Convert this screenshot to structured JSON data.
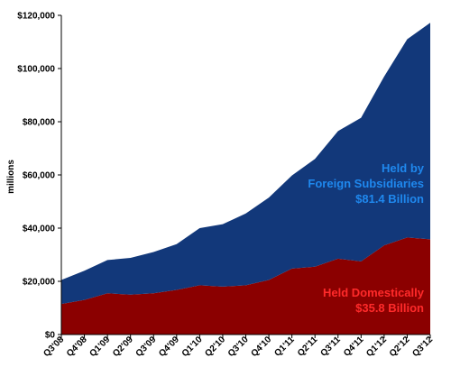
{
  "chart_data": {
    "type": "area",
    "stacked": true,
    "categories": [
      "Q3'08",
      "Q4'08",
      "Q1'09",
      "Q2'09",
      "Q3'09",
      "Q4'09",
      "Q1'10",
      "Q2'10",
      "Q3'10",
      "Q4'10",
      "Q1'11",
      "Q2'11",
      "Q3'11",
      "Q4'11",
      "Q1'12",
      "Q2'12",
      "Q3'12"
    ],
    "ylabel": "millions",
    "ylim": [
      0,
      120000
    ],
    "yticks": [
      0,
      20000,
      40000,
      60000,
      80000,
      100000,
      120000
    ],
    "ytick_labels": [
      "$0",
      "$20,000",
      "$40,000",
      "$60,000",
      "$80,000",
      "$100,000",
      "$120,000"
    ],
    "grid": false,
    "series": [
      {
        "color": "#8b0000",
        "values": [
          11500,
          13000,
          15500,
          15000,
          15500,
          16800,
          18500,
          18000,
          18500,
          20500,
          24800,
          25500,
          28500,
          27500,
          33500,
          36500,
          35800
        ]
      },
      {
        "color": "#12387a",
        "values": [
          9000,
          11000,
          12500,
          13800,
          15500,
          17200,
          21500,
          23500,
          27000,
          31000,
          35000,
          40500,
          48000,
          54000,
          63500,
          74500,
          81400
        ]
      }
    ],
    "annotations": [
      {
        "lines": [
          "Held by",
          "Foreign Subsidiaries",
          "$81.4 Billion"
        ],
        "color": "#1f88ee"
      },
      {
        "lines": [
          "Held Domestically",
          "$35.8 Billion"
        ],
        "color": "#ff2a2a"
      }
    ]
  }
}
